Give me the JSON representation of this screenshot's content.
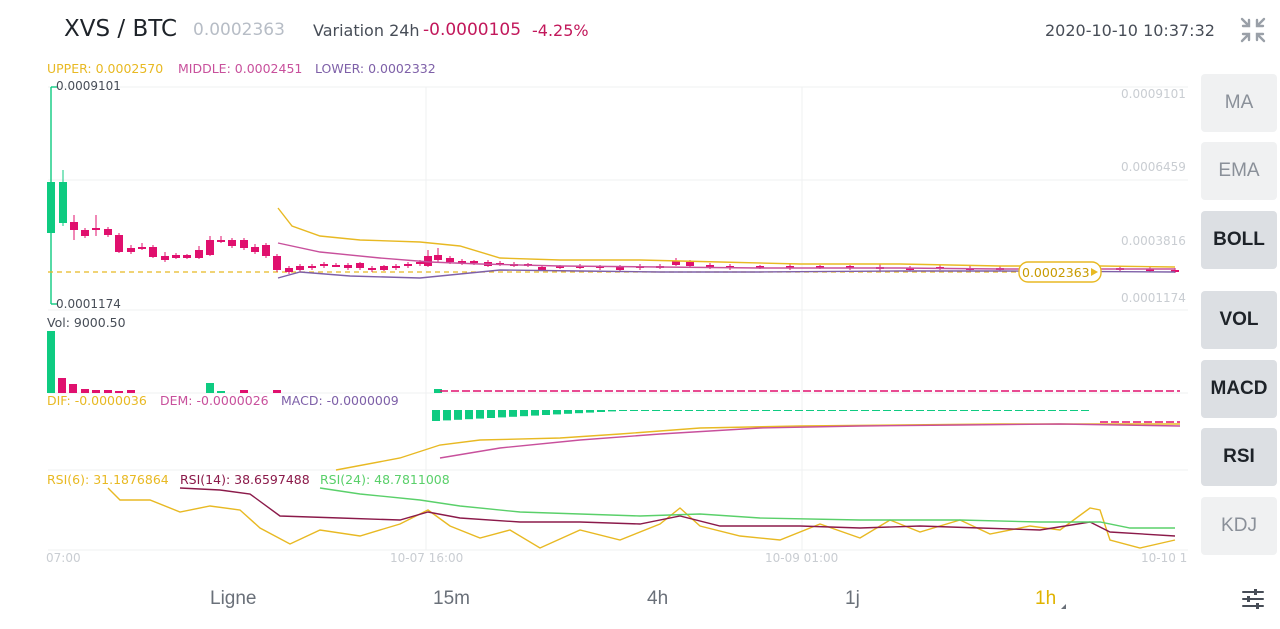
{
  "header": {
    "pair": "XVS / BTC",
    "price": "0.0002363",
    "variation_label": "Variation 24h",
    "variation_value": "-0.0000105",
    "variation_pct": "-4.25%",
    "datetime": "2020-10-10 10:37:32"
  },
  "boll_legend": {
    "upper": "UPPER: 0.0002570",
    "middle": "MIDDLE: 0.0002451",
    "lower": "LOWER: 0.0002332"
  },
  "price_axis": {
    "max_label": "0.0009101",
    "min_label": "0.0001174",
    "right_labels": [
      "0.0009101",
      "0.0006459",
      "0.0003816",
      "0.0001174"
    ],
    "current_price_tag": "0.0002363"
  },
  "volume": {
    "label": "Vol: 9000.50"
  },
  "macd_legend": {
    "dif": "DIF: -0.0000036",
    "dem": "DEM: -0.0000026",
    "macd": "MACD: -0.0000009"
  },
  "rsi_legend": {
    "rsi6": "RSI(6): 31.1876864",
    "rsi14": "RSI(14): 38.6597488",
    "rsi24": "RSI(24): 48.7811008"
  },
  "time_axis": {
    "labels": [
      "07:00",
      "10-07 16:00",
      "10-09 01:00",
      "10-10 1"
    ]
  },
  "indicators": [
    {
      "label": "MA",
      "active": false
    },
    {
      "label": "EMA",
      "active": false
    },
    {
      "label": "BOLL",
      "active": true
    },
    {
      "label": "VOL",
      "active": true
    },
    {
      "label": "MACD",
      "active": true
    },
    {
      "label": "RSI",
      "active": true
    },
    {
      "label": "KDJ",
      "active": false
    }
  ],
  "timeframes": [
    {
      "label": "Ligne",
      "active": false
    },
    {
      "label": "15m",
      "active": false
    },
    {
      "label": "4h",
      "active": false
    },
    {
      "label": "1j",
      "active": false
    },
    {
      "label": "1h",
      "active": true
    }
  ],
  "colors": {
    "up": "#0ecb81",
    "down": "#e0106e",
    "upper": "#e8b923",
    "middle": "#c8509c",
    "lower": "#7e60a8",
    "rsi14": "#8b1a4a",
    "rsi24": "#5ad06a",
    "active_timeframe": "#e0b300"
  }
}
